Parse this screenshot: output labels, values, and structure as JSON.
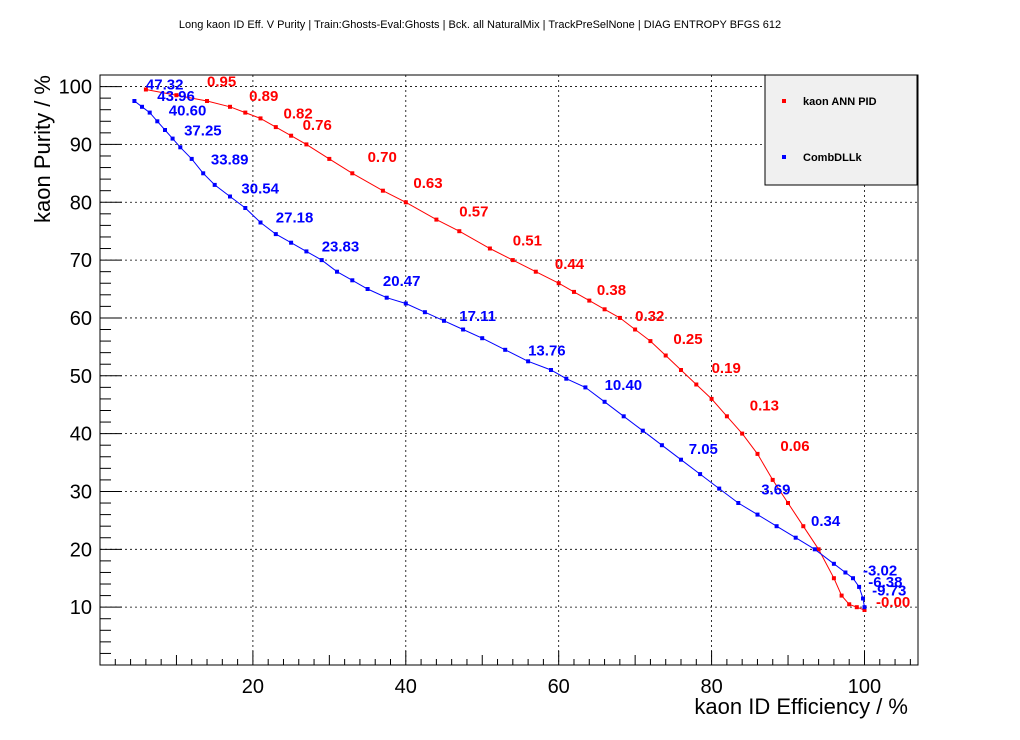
{
  "chart_data": {
    "type": "line",
    "title": "Long kaon ID Eff. V Purity | Train:Ghosts-Eval:Ghosts | Bck. all NaturalMix | TrackPreSelNone | DIAG ENTROPY BFGS 612",
    "xlabel": "kaon ID Efficiency / %",
    "ylabel": "kaon Purity / %",
    "xlim": [
      0,
      107
    ],
    "ylim": [
      0,
      102
    ],
    "xticks": [
      20,
      40,
      60,
      80,
      100
    ],
    "yticks": [
      10,
      20,
      30,
      40,
      50,
      60,
      70,
      80,
      90,
      100
    ],
    "grid": true,
    "legend_position": "top-right",
    "series": [
      {
        "name": "kaon ANN PID",
        "color": "#ff0000",
        "x": [
          6,
          10,
          14,
          17,
          19,
          21,
          23,
          25,
          27,
          30,
          33,
          37,
          40,
          44,
          47,
          51,
          54,
          57,
          60,
          62,
          64,
          66,
          68,
          70,
          72,
          74,
          76,
          78,
          80,
          82,
          84,
          86,
          88,
          90,
          92,
          94,
          96,
          97,
          98,
          99,
          100
        ],
        "y": [
          99.5,
          98.5,
          97.5,
          96.5,
          95.5,
          94.5,
          93,
          91.5,
          90,
          87.5,
          85,
          82,
          80,
          77,
          75,
          72,
          70,
          68,
          66,
          64.5,
          63,
          61.5,
          60,
          58,
          56,
          53.5,
          51,
          48.5,
          46,
          43,
          40,
          36.5,
          32,
          28,
          24,
          20,
          15,
          12,
          10.5,
          10,
          9.5
        ],
        "labels": [
          {
            "text": "0.95",
            "x": 14,
            "y": 100
          },
          {
            "text": "0.89",
            "x": 19.5,
            "y": 97.5
          },
          {
            "text": "0.82",
            "x": 24,
            "y": 94.5
          },
          {
            "text": "0.76",
            "x": 26.5,
            "y": 92.5
          },
          {
            "text": "0.70",
            "x": 35,
            "y": 87
          },
          {
            "text": "0.63",
            "x": 41,
            "y": 82.5
          },
          {
            "text": "0.57",
            "x": 47,
            "y": 77.5
          },
          {
            "text": "0.51",
            "x": 54,
            "y": 72.5
          },
          {
            "text": "0.44",
            "x": 59.5,
            "y": 68.5
          },
          {
            "text": "0.38",
            "x": 65,
            "y": 64
          },
          {
            "text": "0.32",
            "x": 70,
            "y": 59.5
          },
          {
            "text": "0.25",
            "x": 75,
            "y": 55.5
          },
          {
            "text": "0.19",
            "x": 80,
            "y": 50.5
          },
          {
            "text": "0.13",
            "x": 85,
            "y": 44
          },
          {
            "text": "0.06",
            "x": 89,
            "y": 37
          }
        ]
      },
      {
        "name": "CombDLLk",
        "color": "#0000ff",
        "x": [
          4.5,
          5.5,
          6.5,
          7.5,
          8.5,
          9.5,
          10.5,
          12,
          13.5,
          15,
          17,
          19,
          21,
          23,
          25,
          27,
          29,
          31,
          33,
          35,
          37.5,
          40,
          42.5,
          45,
          47.5,
          50,
          53,
          56,
          59,
          61,
          63.5,
          66,
          68.5,
          71,
          73.5,
          76,
          78.5,
          81,
          83.5,
          86,
          88.5,
          91,
          93.5,
          96,
          97.5,
          98.5,
          99.3,
          99.8,
          100
        ],
        "y": [
          97.5,
          96.5,
          95.5,
          94,
          92.5,
          91,
          89.5,
          87.5,
          85,
          83,
          81,
          79,
          76.5,
          74.5,
          73,
          71.5,
          70,
          68,
          66.5,
          65,
          63.5,
          62.5,
          61,
          59.5,
          58,
          56.5,
          54.5,
          52.5,
          51,
          49.5,
          48,
          45.5,
          43,
          40.5,
          38,
          35.5,
          33,
          30.5,
          28,
          26,
          24,
          22,
          20,
          17.5,
          16,
          15,
          13.5,
          11.5,
          10
        ],
        "labels": [
          {
            "text": "47.32",
            "x": 6,
            "y": 99.5
          },
          {
            "text": "43.96",
            "x": 7.5,
            "y": 97.5
          },
          {
            "text": "40.60",
            "x": 9,
            "y": 95
          },
          {
            "text": "37.25",
            "x": 11,
            "y": 91.5
          },
          {
            "text": "33.89",
            "x": 14.5,
            "y": 86.5
          },
          {
            "text": "30.54",
            "x": 18.5,
            "y": 81.5
          },
          {
            "text": "27.18",
            "x": 23,
            "y": 76.5
          },
          {
            "text": "23.83",
            "x": 29,
            "y": 71.5
          },
          {
            "text": "20.47",
            "x": 37,
            "y": 65.5
          },
          {
            "text": "17.11",
            "x": 47,
            "y": 59.5
          },
          {
            "text": "13.76",
            "x": 56,
            "y": 53.5
          },
          {
            "text": "10.40",
            "x": 66,
            "y": 47.5
          },
          {
            "text": "7.05",
            "x": 77,
            "y": 36.5
          },
          {
            "text": "3.69",
            "x": 86.5,
            "y": 29.5
          },
          {
            "text": "0.34",
            "x": 93,
            "y": 24
          }
        ]
      }
    ],
    "clutter_labels": [
      {
        "text": "-3.02",
        "color": "#0000ff",
        "x": 99.8,
        "y": 15.5
      },
      {
        "text": "-6.38",
        "color": "#0000ff",
        "x": 100.5,
        "y": 13.5
      },
      {
        "text": "-9.73",
        "color": "#0000ff",
        "x": 101,
        "y": 12
      },
      {
        "text": "-0.00",
        "color": "#ff0000",
        "x": 101.5,
        "y": 10
      }
    ],
    "legend": {
      "entries": [
        "kaon ANN PID",
        "CombDLLk"
      ]
    }
  }
}
